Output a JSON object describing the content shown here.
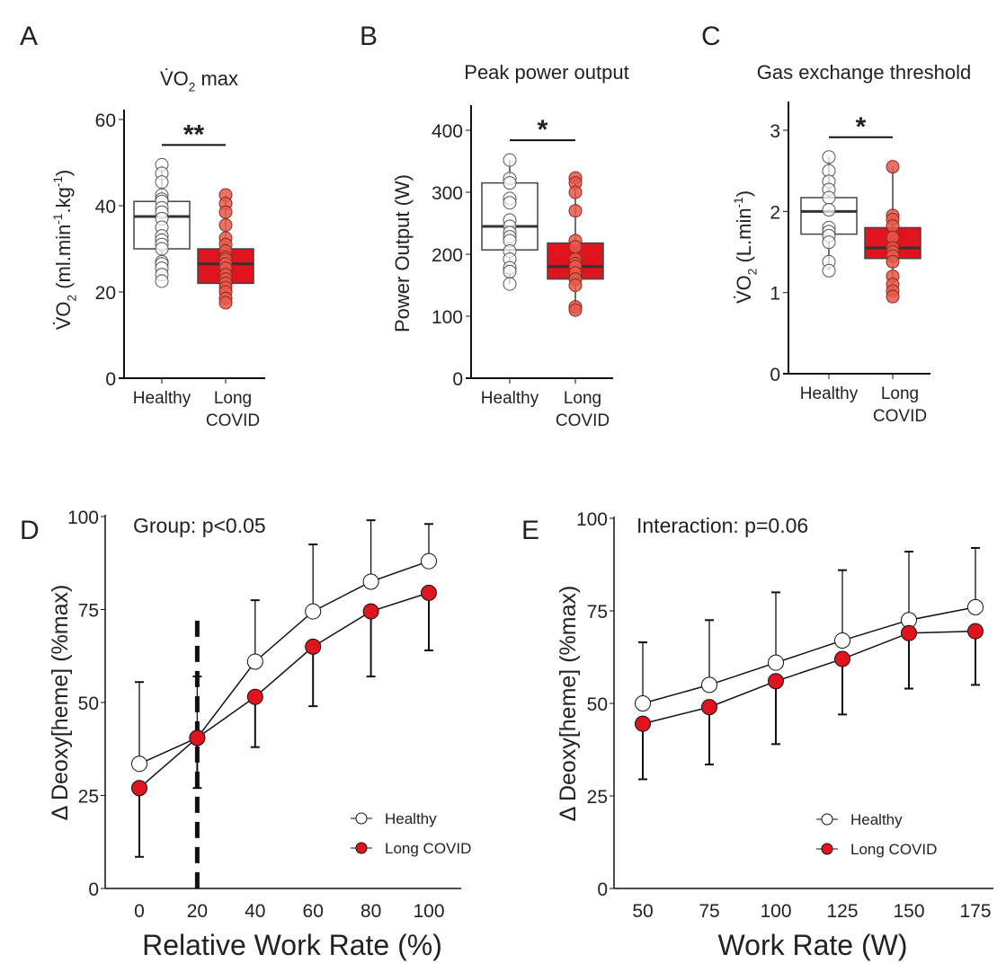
{
  "colors": {
    "healthy_fill": "#ffffff",
    "long_covid_fill": "#e0141e",
    "long_covid_point": "#e8584a",
    "axis": "#111111",
    "box_edge": "#444444"
  },
  "chart_data": [
    {
      "panel": "A",
      "type": "box",
      "title_parts": [
        {
          "t": "V̇O"
        },
        {
          "t": "2",
          "sub": true
        },
        {
          "t": " max"
        }
      ],
      "ylabel_parts": [
        {
          "t": "V̇O"
        },
        {
          "t": "2",
          "sub": true
        },
        {
          "t": " (ml.min"
        },
        {
          "t": "-1",
          "sup": true
        },
        {
          "t": ".kg"
        },
        {
          "t": "-1",
          "sup": true
        },
        {
          "t": ")"
        }
      ],
      "ylim": [
        0,
        62
      ],
      "yticks": [
        0,
        20,
        40,
        60
      ],
      "categories": [
        [
          "Healthy"
        ],
        [
          "Long",
          "COVID"
        ]
      ],
      "significance": "**",
      "groups": [
        {
          "name": "Healthy",
          "q1": 30,
          "median": 37.5,
          "q3": 41,
          "min": 22.5,
          "max": 49.5,
          "points": [
            49.5,
            47.5,
            45.5,
            42.5,
            41.5,
            41,
            39.5,
            38.5,
            37,
            35,
            33,
            32,
            31,
            30,
            27,
            26.5,
            25.5,
            24,
            22.5
          ]
        },
        {
          "name": "Long COVID",
          "q1": 22,
          "median": 26.5,
          "q3": 30,
          "min": 17.5,
          "max": 42.5,
          "points": [
            42.5,
            40.5,
            38.5,
            35.5,
            32.5,
            31,
            29.5,
            28,
            27.5,
            26.5,
            25.5,
            24,
            23,
            22,
            21,
            20,
            18.5,
            17.5
          ]
        }
      ]
    },
    {
      "panel": "B",
      "type": "box",
      "title_parts": [
        {
          "t": "Peak power output"
        }
      ],
      "ylabel_parts": [
        {
          "t": "Power Output (W)"
        }
      ],
      "ylim": [
        0,
        440
      ],
      "yticks": [
        0,
        100,
        200,
        300,
        400
      ],
      "categories": [
        [
          "Healthy"
        ],
        [
          "Long",
          "COVID"
        ]
      ],
      "significance": "*",
      "groups": [
        {
          "name": "Healthy",
          "q1": 207,
          "median": 245,
          "q3": 315,
          "min": 152,
          "max": 352,
          "points": [
            352,
            322,
            315,
            290,
            283,
            255,
            245,
            235,
            228,
            222,
            205,
            192,
            178,
            172,
            152
          ]
        },
        {
          "name": "Long COVID",
          "q1": 160,
          "median": 180,
          "q3": 218,
          "min": 110,
          "max": 323,
          "points": [
            323,
            315,
            300,
            270,
            222,
            212,
            192,
            185,
            180,
            170,
            160,
            150,
            115,
            110
          ]
        }
      ]
    },
    {
      "panel": "C",
      "type": "box",
      "title_parts": [
        {
          "t": "Gas exchange threshold"
        }
      ],
      "ylabel_parts": [
        {
          "t": "V̇O"
        },
        {
          "t": "2",
          "sub": true
        },
        {
          "t": " (L.min"
        },
        {
          "t": "-1",
          "sup": true
        },
        {
          "t": ")"
        }
      ],
      "ylim": [
        0,
        3.35
      ],
      "yticks": [
        0,
        1,
        2,
        3
      ],
      "categories": [
        [
          "Healthy"
        ],
        [
          "Long",
          "COVID"
        ]
      ],
      "significance": "*",
      "groups": [
        {
          "name": "Healthy",
          "q1": 1.72,
          "median": 2.0,
          "q3": 2.17,
          "min": 1.27,
          "max": 2.67,
          "points": [
            2.67,
            2.5,
            2.37,
            2.27,
            2.17,
            2.02,
            1.8,
            1.75,
            1.7,
            1.62,
            1.38,
            1.27
          ]
        },
        {
          "name": "Long COVID",
          "q1": 1.42,
          "median": 1.55,
          "q3": 1.8,
          "min": 0.95,
          "max": 2.55,
          "points": [
            2.55,
            1.95,
            1.9,
            1.82,
            1.68,
            1.55,
            1.5,
            1.45,
            1.38,
            1.2,
            1.1,
            1.02,
            0.95
          ]
        }
      ]
    },
    {
      "panel": "D",
      "type": "line",
      "ylabel": "Δ Deoxy[heme] (%max)",
      "xlabel": "Relative Work Rate (%)",
      "annotation": "Group: p<0.05",
      "xlim": [
        -12,
        112
      ],
      "ylim": [
        0,
        100
      ],
      "xticks": [
        0,
        20,
        40,
        60,
        80,
        100
      ],
      "yticks": [
        0,
        25,
        50,
        75,
        100
      ],
      "vline": {
        "x": 20,
        "y_top": 72
      },
      "x": [
        0,
        20,
        40,
        60,
        80,
        100
      ],
      "series": [
        {
          "name": "Healthy",
          "values": [
            33.5,
            40.5,
            61,
            74.5,
            82.5,
            88
          ],
          "error_top": [
            55.5,
            57,
            77.5,
            92.5,
            99,
            98
          ]
        },
        {
          "name": "Long COVID",
          "values": [
            27,
            40.5,
            51.5,
            65,
            74.5,
            79.5
          ],
          "error_bottom": [
            8.5,
            27,
            38,
            49,
            57,
            64
          ]
        }
      ]
    },
    {
      "panel": "E",
      "type": "line",
      "ylabel": "Δ Deoxy[heme] (%max)",
      "xlabel": "Work Rate (W)",
      "annotation": "Interaction: p=0.06",
      "xlim": [
        41,
        183
      ],
      "ylim": [
        0,
        100
      ],
      "xticks": [
        50,
        75,
        100,
        125,
        150,
        175
      ],
      "yticks": [
        0,
        25,
        50,
        75,
        100
      ],
      "x": [
        50,
        75,
        100,
        125,
        150,
        175
      ],
      "series": [
        {
          "name": "Healthy",
          "values": [
            50,
            55,
            61,
            67,
            72.5,
            76
          ],
          "error_top": [
            66.5,
            72.5,
            80,
            86,
            91,
            92
          ]
        },
        {
          "name": "Long COVID",
          "values": [
            44.5,
            49,
            56,
            62,
            69,
            69.5
          ],
          "error_bottom": [
            29.5,
            33.5,
            39,
            47,
            54,
            55
          ]
        }
      ]
    }
  ]
}
